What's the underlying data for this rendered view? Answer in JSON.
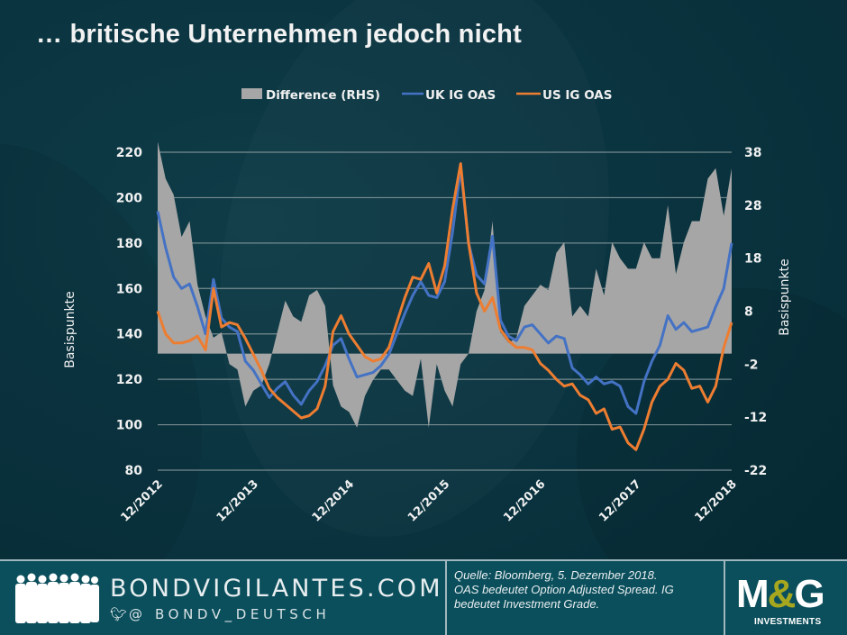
{
  "title": "… britische Unternehmen jedoch nicht",
  "footer": {
    "brand": "BONDVIGILANTES.COM",
    "handle_prefix": "@",
    "handle": "BONDV_DEUTSCH",
    "source_line1": "Quelle: Bloomberg, 5. Dezember 2018.",
    "source_line2": "OAS bedeutet Option Adjusted Spread. IG",
    "source_line3": "bedeutet Investment Grade.",
    "logo_main": "M&G",
    "logo_sub": "INVESTMENTS",
    "icons": [
      "people-silhouette-icon",
      "twitter-bird-icon"
    ]
  },
  "colors": {
    "background": "#08323d",
    "footer": "#0b4f5c",
    "uk": "#4472c4",
    "us": "#ed7d31",
    "difference": "#a6a6a6",
    "grid": "#8a9a9e",
    "logo_accent": "#a6a71e"
  },
  "chart_data": {
    "type": "line",
    "title": "",
    "ylabel": "Basispunkte",
    "ylabel_right": "Basispunkte",
    "ylim": [
      80,
      220
    ],
    "yticks": [
      80,
      100,
      120,
      140,
      160,
      180,
      200,
      220
    ],
    "ylim_right": [
      -22,
      38
    ],
    "yticks_right": [
      -22,
      -12,
      -2,
      8,
      18,
      28,
      38
    ],
    "xtick_labels": [
      "12/2012",
      "12/2013",
      "12/2014",
      "12/2015",
      "12/2016",
      "12/2017",
      "12/2018"
    ],
    "grid": true,
    "legend_position": "top",
    "legend": [
      "Difference (RHS)",
      "UK IG OAS",
      "US IG OAS"
    ],
    "x": [
      "12/2012",
      "01/2013",
      "02/2013",
      "03/2013",
      "04/2013",
      "05/2013",
      "06/2013",
      "07/2013",
      "08/2013",
      "09/2013",
      "10/2013",
      "11/2013",
      "12/2013",
      "01/2014",
      "02/2014",
      "03/2014",
      "04/2014",
      "05/2014",
      "06/2014",
      "07/2014",
      "08/2014",
      "09/2014",
      "10/2014",
      "11/2014",
      "12/2014",
      "01/2015",
      "02/2015",
      "03/2015",
      "04/2015",
      "05/2015",
      "06/2015",
      "07/2015",
      "08/2015",
      "09/2015",
      "10/2015",
      "11/2015",
      "12/2015",
      "01/2016",
      "02/2016",
      "03/2016",
      "04/2016",
      "05/2016",
      "06/2016",
      "07/2016",
      "08/2016",
      "09/2016",
      "10/2016",
      "11/2016",
      "12/2016",
      "01/2017",
      "02/2017",
      "03/2017",
      "04/2017",
      "05/2017",
      "06/2017",
      "07/2017",
      "08/2017",
      "09/2017",
      "10/2017",
      "11/2017",
      "12/2017",
      "01/2018",
      "02/2018",
      "03/2018",
      "04/2018",
      "05/2018",
      "06/2018",
      "07/2018",
      "08/2018",
      "09/2018",
      "10/2018",
      "11/2018",
      "12/2018"
    ],
    "series": [
      {
        "name": "Difference (RHS)",
        "type": "area",
        "axis": "right",
        "values": [
          40,
          33,
          30,
          22,
          25,
          13,
          7,
          3,
          4,
          -2,
          -3,
          -10,
          -7,
          -6,
          -2,
          4,
          10,
          7,
          6,
          11,
          12,
          9,
          -6,
          -10,
          -11,
          -14,
          -8,
          -5,
          -3,
          -3,
          -5,
          -7,
          -8,
          -1,
          -14,
          -2,
          -7,
          -10,
          -2,
          0,
          8,
          12,
          25,
          4,
          2,
          3,
          9,
          11,
          13,
          12,
          19,
          21,
          7,
          9,
          7,
          16,
          11,
          21,
          18,
          16,
          16,
          21,
          18,
          18,
          28,
          15,
          21,
          25,
          25,
          33,
          35,
          26,
          35
        ]
      },
      {
        "name": "UK IG OAS",
        "type": "line",
        "axis": "left",
        "values": [
          194,
          178,
          165,
          160,
          162,
          152,
          140,
          164,
          147,
          143,
          141,
          128,
          124,
          118,
          112,
          116,
          119,
          113,
          109,
          115,
          119,
          126,
          135,
          138,
          129,
          121,
          122,
          123,
          126,
          131,
          140,
          149,
          157,
          163,
          157,
          156,
          163,
          185,
          213,
          180,
          166,
          162,
          183,
          146,
          139,
          137,
          143,
          144,
          140,
          136,
          139,
          138,
          125,
          122,
          118,
          121,
          118,
          119,
          117,
          108,
          105,
          119,
          128,
          135,
          148,
          142,
          145,
          141,
          142,
          143,
          152,
          160,
          180
        ]
      },
      {
        "name": "US IG OAS",
        "type": "line",
        "axis": "left",
        "values": [
          150,
          140,
          136,
          136,
          137,
          139,
          133,
          160,
          143,
          145,
          144,
          138,
          131,
          124,
          116,
          112,
          109,
          106,
          103,
          104,
          107,
          117,
          141,
          148,
          140,
          135,
          130,
          128,
          129,
          134,
          145,
          156,
          165,
          164,
          171,
          158,
          170,
          195,
          215,
          180,
          158,
          150,
          156,
          142,
          137,
          134,
          134,
          133,
          127,
          124,
          120,
          117,
          118,
          113,
          111,
          105,
          107,
          98,
          99,
          92,
          89,
          98,
          110,
          117,
          120,
          127,
          124,
          116,
          117,
          110,
          117,
          134,
          145
        ]
      }
    ]
  }
}
